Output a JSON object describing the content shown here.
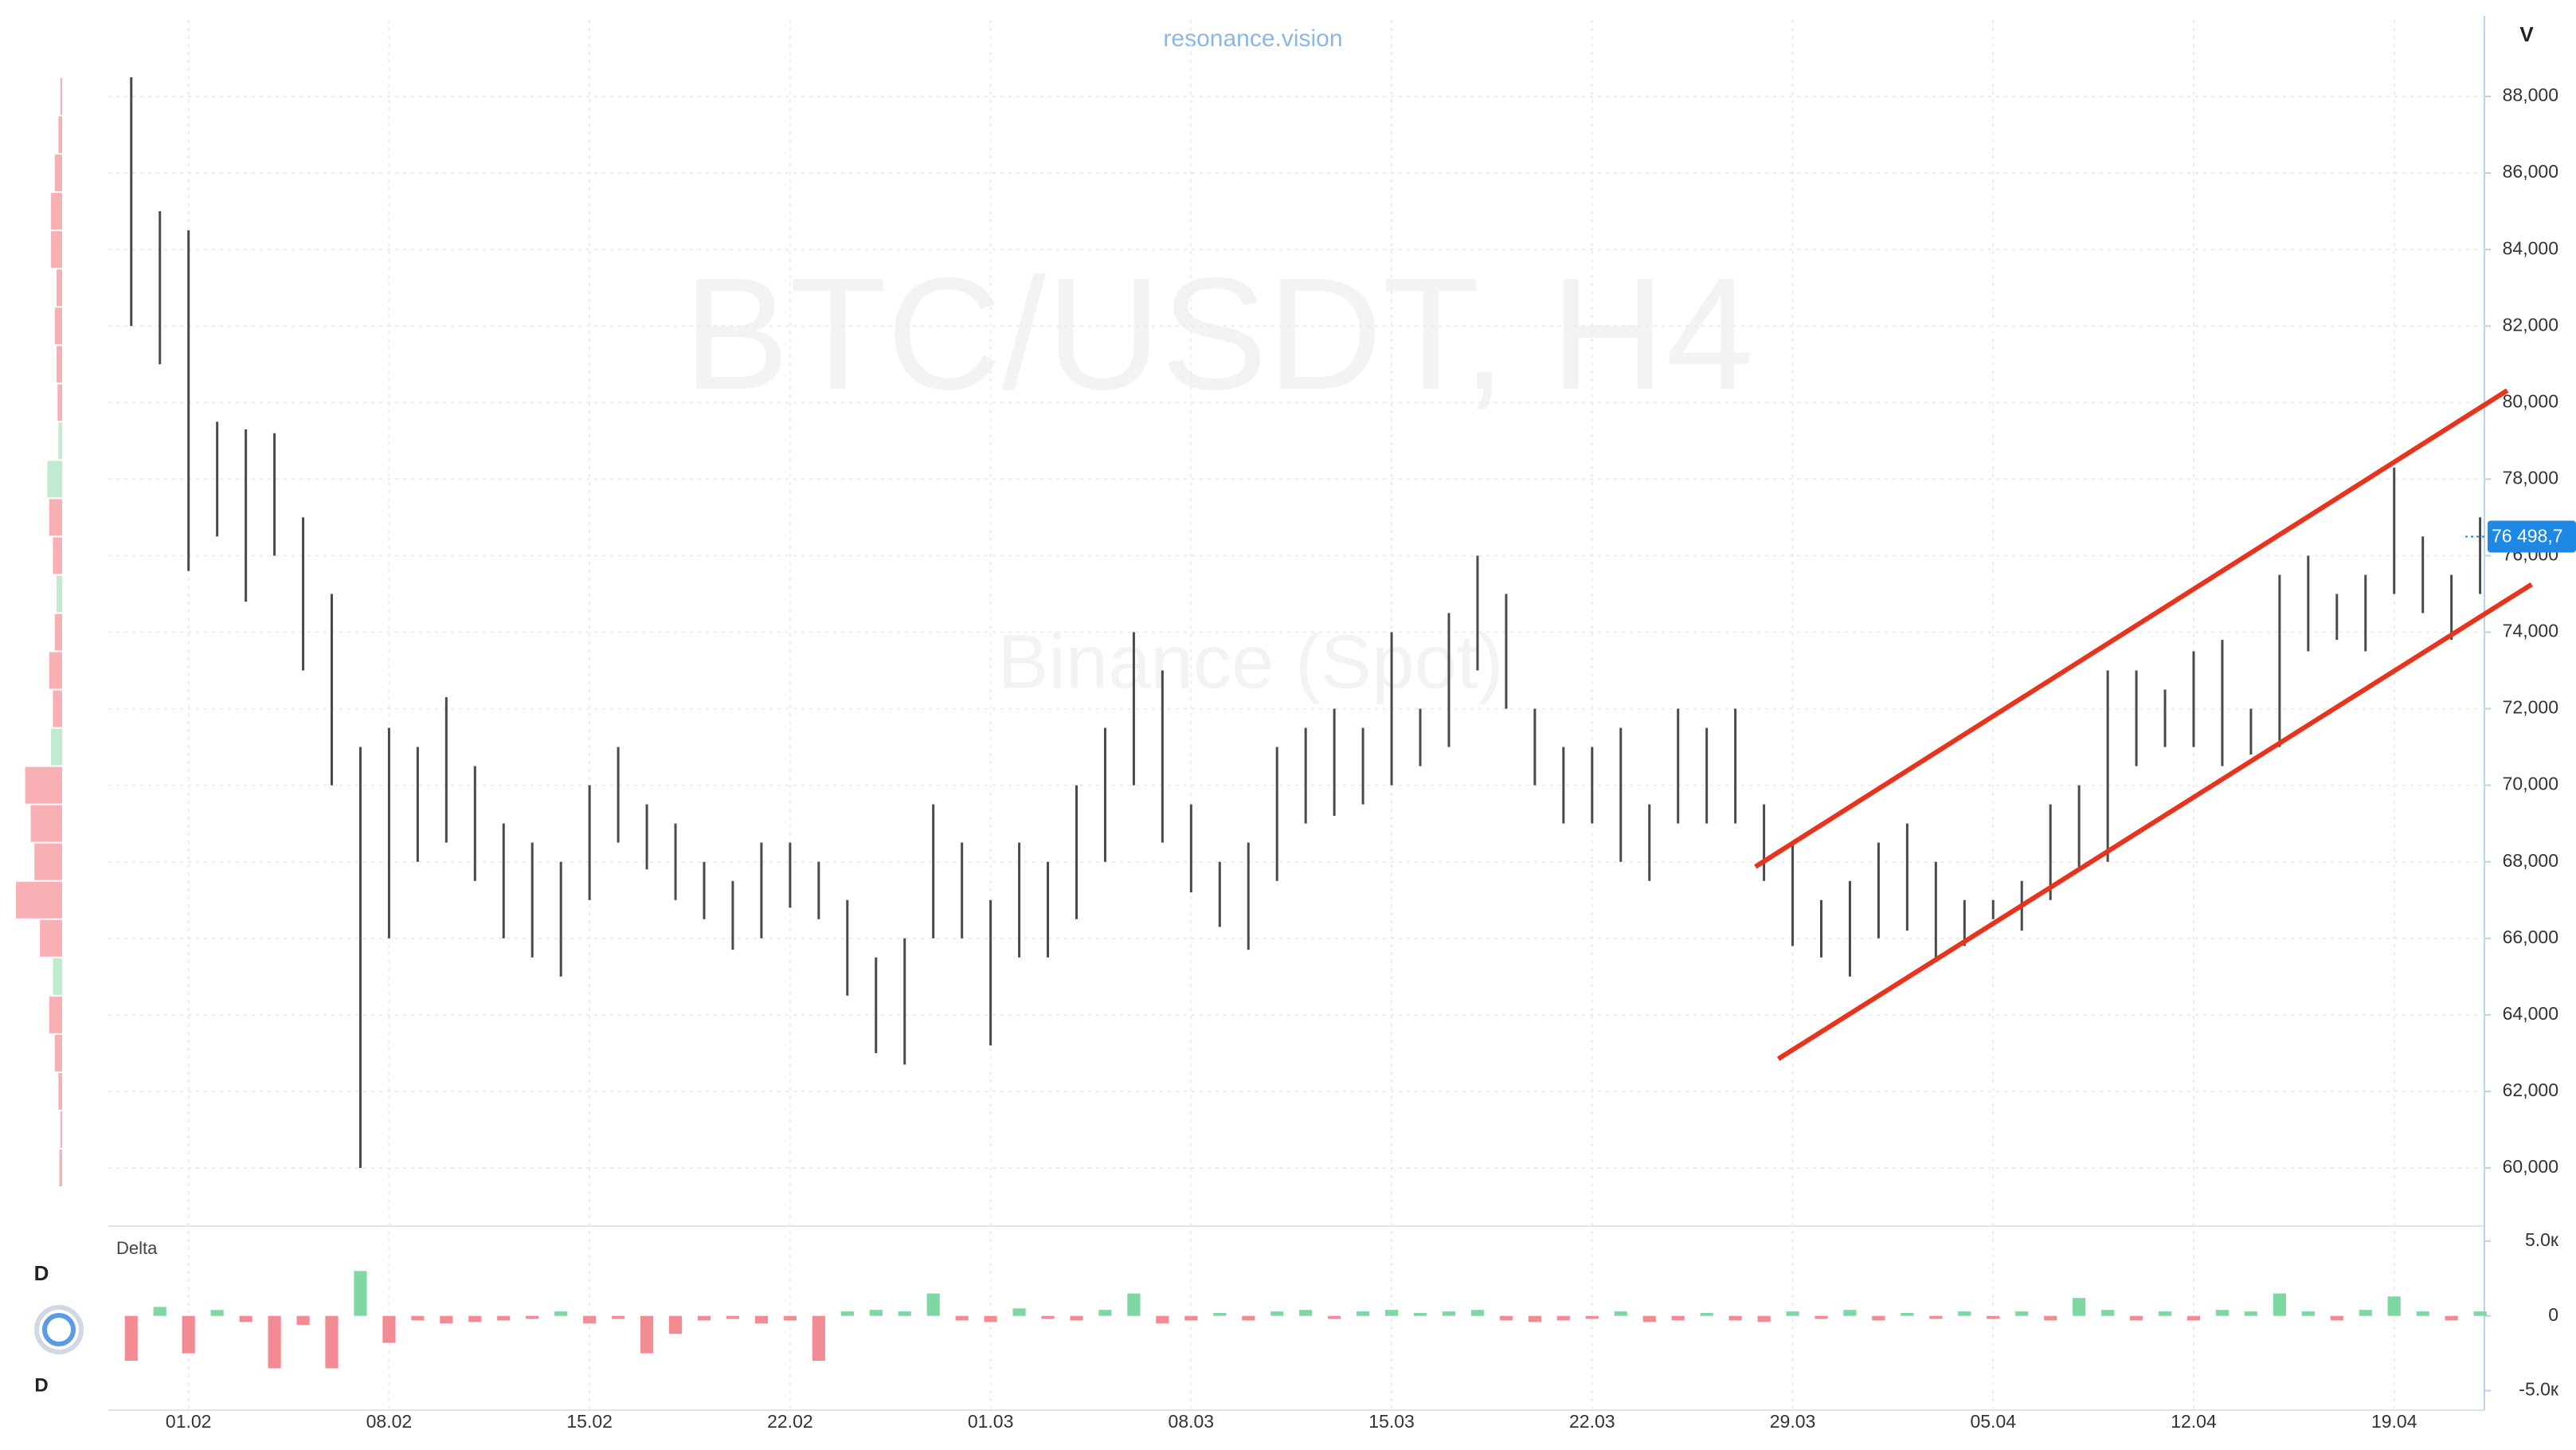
{
  "chart_data": {
    "type": "range",
    "site": "resonance.vision",
    "title": "BTC/USDT, H4",
    "subtitle": "Binance (Spot)",
    "price_axis_label": "V",
    "delta_label": "Delta",
    "left_label_top": "D",
    "left_label_bottom": "D",
    "x": [
      -2,
      -1,
      0,
      1,
      2,
      3,
      4,
      5,
      6,
      7,
      8,
      9,
      10,
      11,
      12,
      13,
      14,
      15,
      16,
      17,
      18,
      19,
      20,
      21,
      22,
      23,
      24,
      25,
      26,
      27,
      28,
      29,
      30,
      31,
      32,
      33,
      34,
      35,
      36,
      37,
      38,
      39,
      40,
      41,
      42,
      43,
      44,
      45,
      46,
      47,
      48,
      49,
      50,
      51,
      52,
      53,
      54,
      55,
      56,
      57,
      58,
      59,
      60,
      61,
      62,
      63,
      64,
      65,
      66,
      67,
      68,
      69,
      70,
      71,
      72,
      73,
      74,
      75,
      76,
      77,
      78,
      79,
      80
    ],
    "high": [
      88500,
      85000,
      84500,
      79500,
      79300,
      79200,
      77000,
      75000,
      71000,
      71500,
      71000,
      72300,
      70500,
      69000,
      68500,
      68000,
      70000,
      71000,
      69500,
      69000,
      68000,
      67500,
      68500,
      68500,
      68000,
      67000,
      65500,
      66000,
      69500,
      68500,
      67000,
      68500,
      68000,
      70000,
      71500,
      74000,
      73000,
      69500,
      68000,
      68500,
      71000,
      71500,
      72000,
      71500,
      74000,
      72000,
      74500,
      76000,
      75000,
      72000,
      71000,
      71000,
      71500,
      69500,
      72000,
      71500,
      72000,
      69500,
      68500,
      67000,
      67500,
      68500,
      69000,
      68000,
      67000,
      67000,
      67500,
      69500,
      70000,
      73000,
      73000,
      72500,
      73500,
      73800,
      72000,
      75500,
      76000,
      75000,
      75500,
      78300,
      76500,
      75500,
      77000
    ],
    "low": [
      82000,
      81000,
      75600,
      76500,
      74800,
      76000,
      73000,
      70000,
      60000,
      66000,
      68000,
      68500,
      67500,
      66000,
      65500,
      65000,
      67000,
      68500,
      67800,
      67000,
      66500,
      65700,
      66000,
      66800,
      66500,
      64500,
      63000,
      62700,
      66000,
      66000,
      63200,
      65500,
      65500,
      66500,
      68000,
      70000,
      68500,
      67200,
      66300,
      65700,
      67500,
      69000,
      69200,
      69500,
      70000,
      70500,
      71000,
      73000,
      72000,
      70000,
      69000,
      69000,
      68000,
      67500,
      69000,
      69000,
      69000,
      67500,
      65800,
      65500,
      65000,
      66000,
      66200,
      65500,
      65800,
      66500,
      66200,
      67000,
      67800,
      68000,
      70500,
      71000,
      71000,
      70500,
      70800,
      71000,
      73500,
      73800,
      73500,
      75000,
      74500,
      73800,
      75000
    ],
    "color": "#4a4a4a",
    "xlim": [
      -2.8,
      80.15
    ],
    "xticks": [
      {
        "value": 0,
        "label": "01.02"
      },
      {
        "value": 7,
        "label": "08.02"
      },
      {
        "value": 14,
        "label": "15.02"
      },
      {
        "value": 21,
        "label": "22.02"
      },
      {
        "value": 28,
        "label": "01.03"
      },
      {
        "value": 35,
        "label": "08.03"
      },
      {
        "value": 42,
        "label": "15.03"
      },
      {
        "value": 49,
        "label": "22.03"
      },
      {
        "value": 56,
        "label": "29.03"
      },
      {
        "value": 63,
        "label": "05.04"
      },
      {
        "value": 70,
        "label": "12.04"
      },
      {
        "value": 77,
        "label": "19.04"
      }
    ],
    "ylim": [
      58500,
      90000
    ],
    "yticks": [
      {
        "value": 60000,
        "label": "60,000"
      },
      {
        "value": 62000,
        "label": "62,000"
      },
      {
        "value": 64000,
        "label": "64,000"
      },
      {
        "value": 66000,
        "label": "66,000"
      },
      {
        "value": 68000,
        "label": "68,000"
      },
      {
        "value": 70000,
        "label": "70,000"
      },
      {
        "value": 72000,
        "label": "72,000"
      },
      {
        "value": 74000,
        "label": "74,000"
      },
      {
        "value": 76000,
        "label": "76,000"
      },
      {
        "value": 78000,
        "label": "78,000"
      },
      {
        "value": 80000,
        "label": "80,000"
      },
      {
        "value": 82000,
        "label": "82,000"
      },
      {
        "value": 84000,
        "label": "84,000"
      },
      {
        "value": 86000,
        "label": "86,000"
      },
      {
        "value": 88000,
        "label": "88,000"
      }
    ],
    "grid": true,
    "last_price": {
      "value": 76498.7,
      "label": "76 498,7",
      "color": "#1e88e5"
    },
    "channel": {
      "color": "#e8341c",
      "upper": {
        "x": [
          54.7,
          80.95
        ],
        "y": [
          67870,
          80318
        ]
      },
      "lower": {
        "x": [
          55.5,
          81.8
        ],
        "y": [
          62850,
          75250
        ]
      }
    },
    "delta": {
      "values": [
        -3000,
        600,
        -2500,
        400,
        -400,
        -3500,
        -600,
        -3500,
        3000,
        -1800,
        -300,
        -500,
        -400,
        -300,
        -200,
        300,
        -500,
        -200,
        -2500,
        -1200,
        -300,
        -200,
        -500,
        -300,
        -3000,
        300,
        400,
        300,
        1500,
        -300,
        -400,
        500,
        -200,
        -300,
        400,
        1500,
        -500,
        -300,
        200,
        -300,
        300,
        400,
        -200,
        300,
        400,
        200,
        300,
        400,
        -300,
        -400,
        -300,
        -200,
        300,
        -400,
        -300,
        200,
        -300,
        -400,
        300,
        -200,
        400,
        -300,
        200,
        -200,
        300,
        -200,
        300,
        -300,
        1200,
        400,
        -300,
        300,
        -300,
        400,
        300,
        1500,
        300,
        -300,
        400,
        1300,
        300,
        -300,
        300
      ],
      "ylim": [
        -6300,
        6000
      ],
      "yticks": [
        {
          "value": -5000,
          "label": "-5.0к"
        },
        0,
        {
          "value": 5000,
          "label": "5.0к"
        }
      ],
      "up_color": "#7fd8a3",
      "down_color": "#f28b93"
    },
    "profile": {
      "levels": [
        60000,
        61000,
        62000,
        63000,
        64000,
        65000,
        66000,
        67000,
        68000,
        69000,
        70000,
        71000,
        72000,
        73000,
        74000,
        75000,
        76000,
        77000,
        78000,
        79000,
        80000,
        81000,
        82000,
        83000,
        84000,
        85000,
        86000,
        87000,
        88000
      ],
      "values": [
        3,
        2,
        4,
        8,
        14,
        10,
        24,
        50,
        30,
        34,
        40,
        12,
        10,
        14,
        8,
        6,
        10,
        14,
        16,
        4,
        5,
        6,
        8,
        6,
        12,
        12,
        8,
        4,
        2
      ],
      "up": [
        false,
        false,
        false,
        false,
        false,
        true,
        false,
        false,
        false,
        false,
        false,
        true,
        false,
        false,
        false,
        true,
        false,
        false,
        true,
        true,
        false,
        false,
        false,
        false,
        false,
        false,
        false,
        false,
        false
      ],
      "up_color": "#bfecd0",
      "down_color": "#f8b0b5"
    }
  }
}
